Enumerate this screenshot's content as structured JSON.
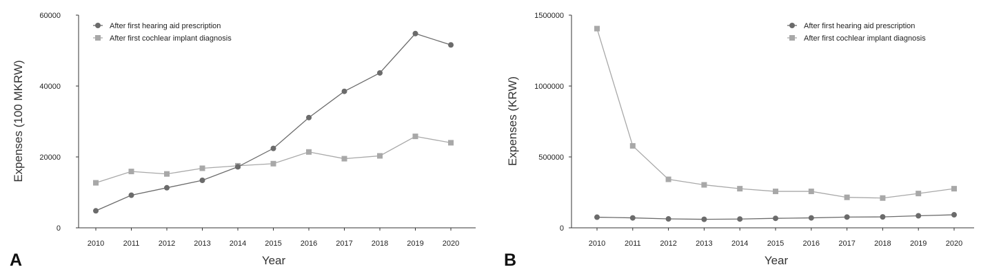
{
  "colors": {
    "series_1": "#6b6b6b",
    "series_2": "#a8a8a8",
    "axis": "#333333"
  },
  "chart_data": [
    {
      "panel_label": "A",
      "type": "line",
      "xlabel": "Year",
      "ylabel": "Expenses (100 MKRW)",
      "categories": [
        "2010",
        "2011",
        "2012",
        "2013",
        "2014",
        "2015",
        "2016",
        "2017",
        "2018",
        "2019",
        "2020"
      ],
      "ylim": [
        0,
        60000
      ],
      "yticks": [
        0,
        20000,
        40000,
        60000
      ],
      "legend_position": "top-left",
      "series": [
        {
          "name": "After first hearing aid prescription",
          "marker": "circle",
          "values": [
            4800,
            9200,
            11300,
            13400,
            17200,
            22400,
            31100,
            38500,
            43700,
            54800,
            51600
          ]
        },
        {
          "name": "After first cochlear implant diagnosis",
          "marker": "square",
          "values": [
            12700,
            15900,
            15200,
            16800,
            17500,
            18100,
            21400,
            19500,
            20300,
            25800,
            24000
          ]
        }
      ]
    },
    {
      "panel_label": "B",
      "type": "line",
      "xlabel": "Year",
      "ylabel": "Expenses (KRW)",
      "categories": [
        "2010",
        "2011",
        "2012",
        "2013",
        "2014",
        "2015",
        "2016",
        "2017",
        "2018",
        "2019",
        "2020"
      ],
      "ylim": [
        0,
        1500000
      ],
      "yticks": [
        0,
        500000,
        1000000,
        1500000
      ],
      "legend_position": "top-right",
      "series": [
        {
          "name": "After first hearing aid prescription",
          "marker": "circle",
          "values": [
            75000,
            70000,
            63000,
            60000,
            62000,
            67000,
            70000,
            76000,
            77000,
            85000,
            92000
          ]
        },
        {
          "name": "After first cochlear implant diagnosis",
          "marker": "square",
          "values": [
            1405000,
            578000,
            342000,
            303000,
            276000,
            257000,
            257000,
            215000,
            210000,
            242000,
            276000
          ]
        }
      ]
    }
  ]
}
